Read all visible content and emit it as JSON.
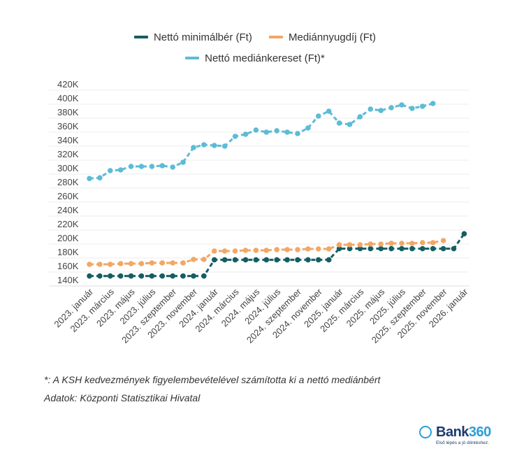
{
  "chart_data": {
    "type": "line",
    "title": "",
    "xlabel": "",
    "ylabel": "",
    "ylim": [
      140000,
      420000
    ],
    "yticks": [
      140000,
      160000,
      180000,
      200000,
      220000,
      240000,
      260000,
      280000,
      300000,
      320000,
      340000,
      360000,
      380000,
      400000,
      420000
    ],
    "ytick_labels": [
      "140K",
      "160K",
      "180K",
      "200K",
      "220K",
      "240K",
      "260K",
      "280K",
      "300K",
      "320K",
      "340K",
      "360K",
      "380K",
      "400K",
      "420K"
    ],
    "grid": "horizontal",
    "legend_placement": "top",
    "x_months": [
      "2023. január",
      "2023. február",
      "2023. március",
      "2023. április",
      "2023. május",
      "2023. június",
      "2023. július",
      "2023. augusztus",
      "2023. szeptember",
      "2023. október",
      "2023. november",
      "2023. december",
      "2024. január",
      "2024. február",
      "2024. március",
      "2024. április",
      "2024. május",
      "2024. június",
      "2024. július",
      "2024. augusztus",
      "2024. szeptember",
      "2024. október",
      "2024. november",
      "2024. december",
      "2025. január",
      "2025. február",
      "2025. március",
      "2025. április",
      "2025. május",
      "2025. június",
      "2025. július",
      "2025. augusztus",
      "2025. szeptember",
      "2025. október",
      "2025. november",
      "2025. december",
      "2026. január"
    ],
    "xtick_labels": [
      "2023. január",
      "2023. március",
      "2023. május",
      "2023. július",
      "2023. szeptember",
      "2023. november",
      "2024. január",
      "2024. március",
      "2024. május",
      "2024. július",
      "2024. szeptember",
      "2024. november",
      "2025. január",
      "2025. március",
      "2025. május",
      "2025. július",
      "2025. szeptember",
      "2025. november",
      "2026. január"
    ],
    "series": [
      {
        "name": "Nettó minimálbér (Ft)",
        "color": "#135e63",
        "values": [
          154280,
          154280,
          154280,
          154280,
          154280,
          154280,
          154280,
          154280,
          154280,
          154280,
          154280,
          154280,
          177420,
          177420,
          177420,
          177420,
          177420,
          177420,
          177420,
          177420,
          177420,
          177420,
          177420,
          177420,
          193380,
          193380,
          193380,
          193380,
          193380,
          193380,
          193380,
          193380,
          193380,
          193380,
          193380,
          193380,
          214660
        ]
      },
      {
        "name": "Mediánnyugdíj (Ft)",
        "color": "#f2a765",
        "values": [
          171000,
          171000,
          171000,
          172000,
          172000,
          172000,
          173000,
          173000,
          173000,
          173000,
          178000,
          178000,
          190000,
          190000,
          190000,
          191000,
          191000,
          191000,
          192000,
          192000,
          192000,
          193000,
          193000,
          193000,
          199000,
          199000,
          199000,
          200000,
          200000,
          201000,
          201000,
          201000,
          202000,
          202000,
          205000,
          null,
          null
        ]
      },
      {
        "name": "Nettó mediánkereset (Ft)*",
        "color": "#5bbcd6",
        "values": [
          293700,
          294700,
          305000,
          306000,
          311000,
          311000,
          311000,
          312000,
          310000,
          317000,
          338000,
          342000,
          341000,
          340000,
          354000,
          357000,
          363000,
          360000,
          362000,
          360000,
          358000,
          366000,
          383000,
          390000,
          373000,
          371000,
          382000,
          393000,
          391000,
          395000,
          399000,
          394000,
          397000,
          401000,
          null,
          null,
          null
        ]
      }
    ]
  },
  "legend": {
    "minwage": "Nettó minimálbér (Ft)",
    "pension": "Mediánnyugdíj (Ft)",
    "salary": "Nettó mediánkereset (Ft)*"
  },
  "footnote": "*: A KSH kedvezmények figyelembevételével számította ki a nettó mediánbért",
  "source": "Adatok: Központi Statisztikai Hivatal",
  "logo": {
    "text": "Bank360",
    "tagline": "Első lépés a jó döntéshez."
  }
}
